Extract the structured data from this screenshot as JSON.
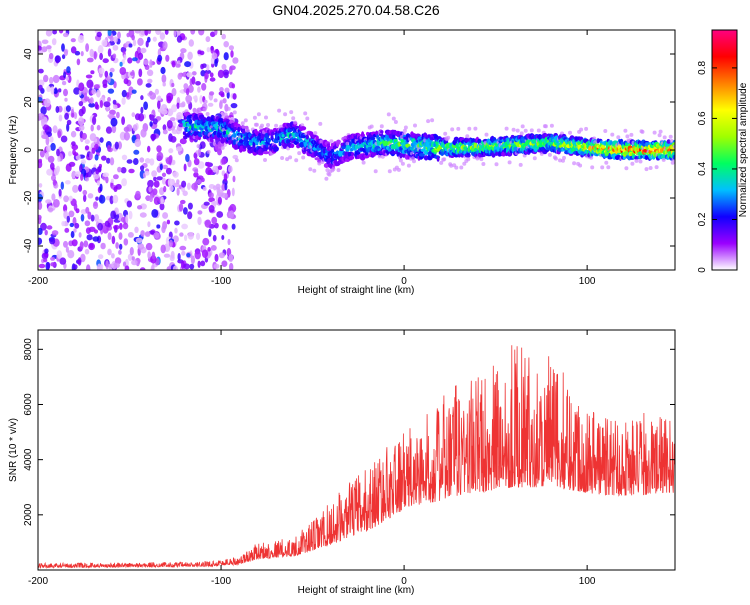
{
  "title": "GN04.2025.270.04.58.C26",
  "chart_data": [
    {
      "type": "heatmap",
      "xlabel": "Height of straight line (km)",
      "ylabel": "Frequency (Hz)",
      "xlim": [
        -200,
        148
      ],
      "ylim": [
        -50,
        50
      ],
      "xticks": [
        -200,
        -100,
        0,
        100
      ],
      "yticks": [
        -40,
        -20,
        0,
        20,
        40
      ],
      "colorbar": {
        "label": "Normalized spectral amplitude",
        "range": [
          0,
          0.95
        ],
        "ticks": [
          0,
          0.2,
          0.4,
          0.6,
          0.8
        ],
        "colors": [
          "#ffffff",
          "#9a00ff",
          "#1000ff",
          "#00c0ff",
          "#00ff60",
          "#a0ff00",
          "#ffff00",
          "#ff8000",
          "#ff0000",
          "#ff0080"
        ]
      },
      "ridge": {
        "x": [
          -120,
          -100,
          -90,
          -80,
          -70,
          -60,
          -50,
          -40,
          -30,
          -20,
          -10,
          0,
          20,
          40,
          60,
          80,
          100,
          120,
          148
        ],
        "freq": [
          10,
          9,
          5,
          3,
          4,
          7,
          2,
          -3,
          1,
          2,
          3,
          2,
          1,
          1,
          2,
          3,
          1,
          0,
          0
        ],
        "amplitude": [
          0.45,
          0.4,
          0.4,
          0.35,
          0.35,
          0.4,
          0.35,
          0.3,
          0.35,
          0.4,
          0.45,
          0.5,
          0.55,
          0.6,
          0.6,
          0.55,
          0.7,
          0.85,
          0.85
        ]
      },
      "noise_region": {
        "x": [
          -200,
          -92
        ],
        "amplitude": 0.1
      }
    },
    {
      "type": "line",
      "xlabel": "Height of straight line (km)",
      "ylabel": "SNR (10 * v/v)",
      "xlim": [
        -200,
        148
      ],
      "ylim": [
        0,
        8700
      ],
      "xticks": [
        -200,
        -100,
        0,
        100
      ],
      "yticks": [
        2000,
        4000,
        6000,
        8000
      ],
      "color": "#ee3333",
      "envelope": {
        "x": [
          -200,
          -110,
          -90,
          -80,
          -60,
          -50,
          -40,
          -30,
          -20,
          -10,
          0,
          10,
          20,
          30,
          40,
          50,
          60,
          70,
          80,
          90,
          100,
          110,
          120,
          130,
          140,
          148
        ],
        "base": [
          80,
          120,
          200,
          400,
          500,
          700,
          900,
          1200,
          1400,
          1800,
          2200,
          2400,
          2500,
          2700,
          2800,
          2900,
          3000,
          3000,
          3000,
          2900,
          2800,
          2700,
          2700,
          2700,
          2800,
          2800
        ],
        "peak": [
          250,
          300,
          500,
          1000,
          1200,
          1800,
          2500,
          3200,
          3800,
          4500,
          5000,
          5500,
          6200,
          7000,
          7200,
          7500,
          8600,
          7600,
          7800,
          7000,
          6200,
          5800,
          5600,
          5700,
          5600,
          5400
        ]
      }
    }
  ]
}
